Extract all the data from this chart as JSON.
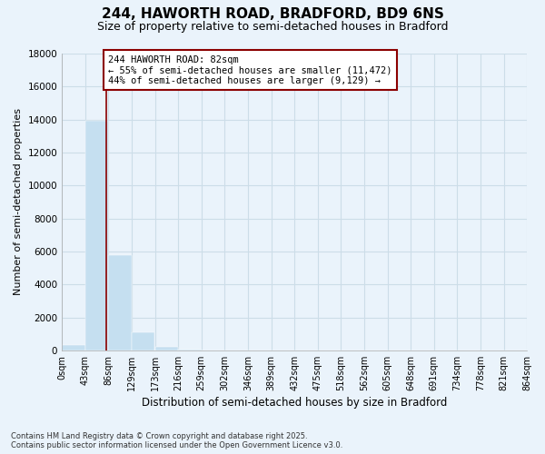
{
  "title1": "244, HAWORTH ROAD, BRADFORD, BD9 6NS",
  "title2": "Size of property relative to semi-detached houses in Bradford",
  "xlabel": "Distribution of semi-detached houses by size in Bradford",
  "ylabel": "Number of semi-detached properties",
  "property_size": 82,
  "annotation_line1": "244 HAWORTH ROAD: 82sqm",
  "annotation_line2": "← 55% of semi-detached houses are smaller (11,472)",
  "annotation_line3": "44% of semi-detached houses are larger (9,129) →",
  "bin_edges": [
    0,
    43,
    86,
    129,
    173,
    216,
    259,
    302,
    346,
    389,
    432,
    475,
    518,
    562,
    605,
    648,
    691,
    734,
    778,
    821,
    864
  ],
  "bin_labels": [
    "0sqm",
    "43sqm",
    "86sqm",
    "129sqm",
    "173sqm",
    "216sqm",
    "259sqm",
    "302sqm",
    "346sqm",
    "389sqm",
    "432sqm",
    "475sqm",
    "518sqm",
    "562sqm",
    "605sqm",
    "648sqm",
    "691sqm",
    "734sqm",
    "778sqm",
    "821sqm",
    "864sqm"
  ],
  "bar_heights": [
    340,
    13900,
    5800,
    1100,
    200,
    50,
    0,
    0,
    0,
    0,
    0,
    0,
    0,
    0,
    0,
    0,
    0,
    0,
    0,
    0
  ],
  "bar_color": "#c5dff0",
  "vline_color": "#8b0000",
  "grid_color": "#ccdde8",
  "bg_color": "#eaf3fb",
  "footnote1": "Contains HM Land Registry data © Crown copyright and database right 2025.",
  "footnote2": "Contains public sector information licensed under the Open Government Licence v3.0.",
  "ylim": [
    0,
    18000
  ],
  "yticks": [
    0,
    2000,
    4000,
    6000,
    8000,
    10000,
    12000,
    14000,
    16000,
    18000
  ]
}
